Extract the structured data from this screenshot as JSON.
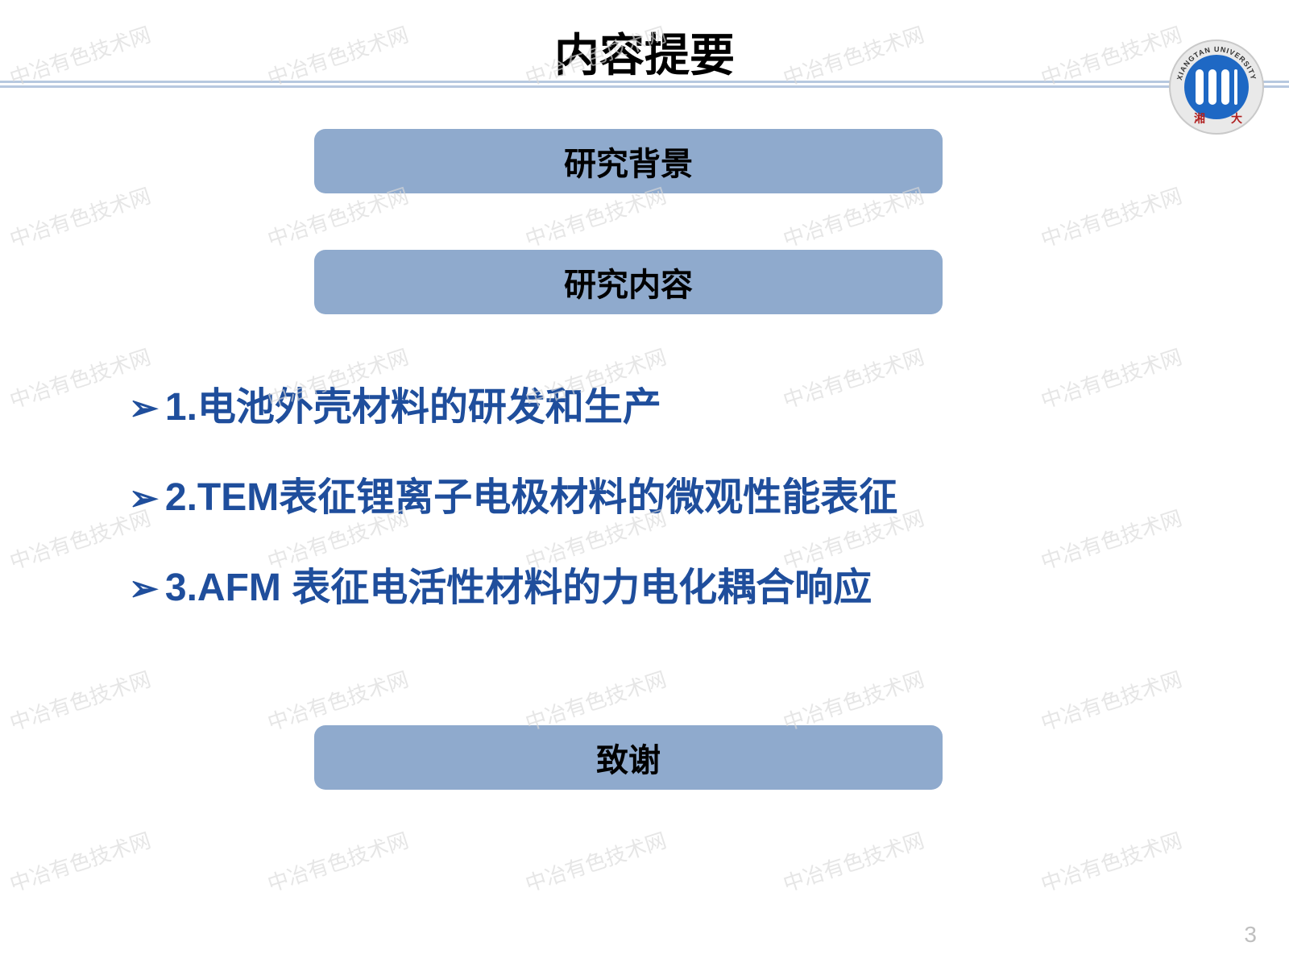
{
  "title": "内容提要",
  "colors": {
    "section_bg": "#8faacd",
    "rule": "#b7c8df",
    "bullet_text": "#1f4e9c",
    "watermark": "#d9d9d9",
    "pagenum": "#bfbfbf",
    "logo_ring": "#c9c9c9",
    "logo_field": "#1e68c4"
  },
  "logo": {
    "arc_text_top": "XIANGTAN UNIVERSITY",
    "ring_color": "#c9c9c9",
    "field_color": "#1e68c4",
    "bar_color": "#ffffff"
  },
  "sections": {
    "s1": "研究背景",
    "s2": "研究内容",
    "s3": "致谢"
  },
  "bullets": [
    "1.电池外壳材料的研发和生产",
    "2.TEM表征锂离子电极材料的微观性能表征",
    "3.AFM 表征电活性材料的力电化耦合响应"
  ],
  "bullet_marker": "➢",
  "watermark_text": "中冶有色技术网",
  "watermark_rows": 6,
  "watermark_cols": 5,
  "page_number": "3"
}
